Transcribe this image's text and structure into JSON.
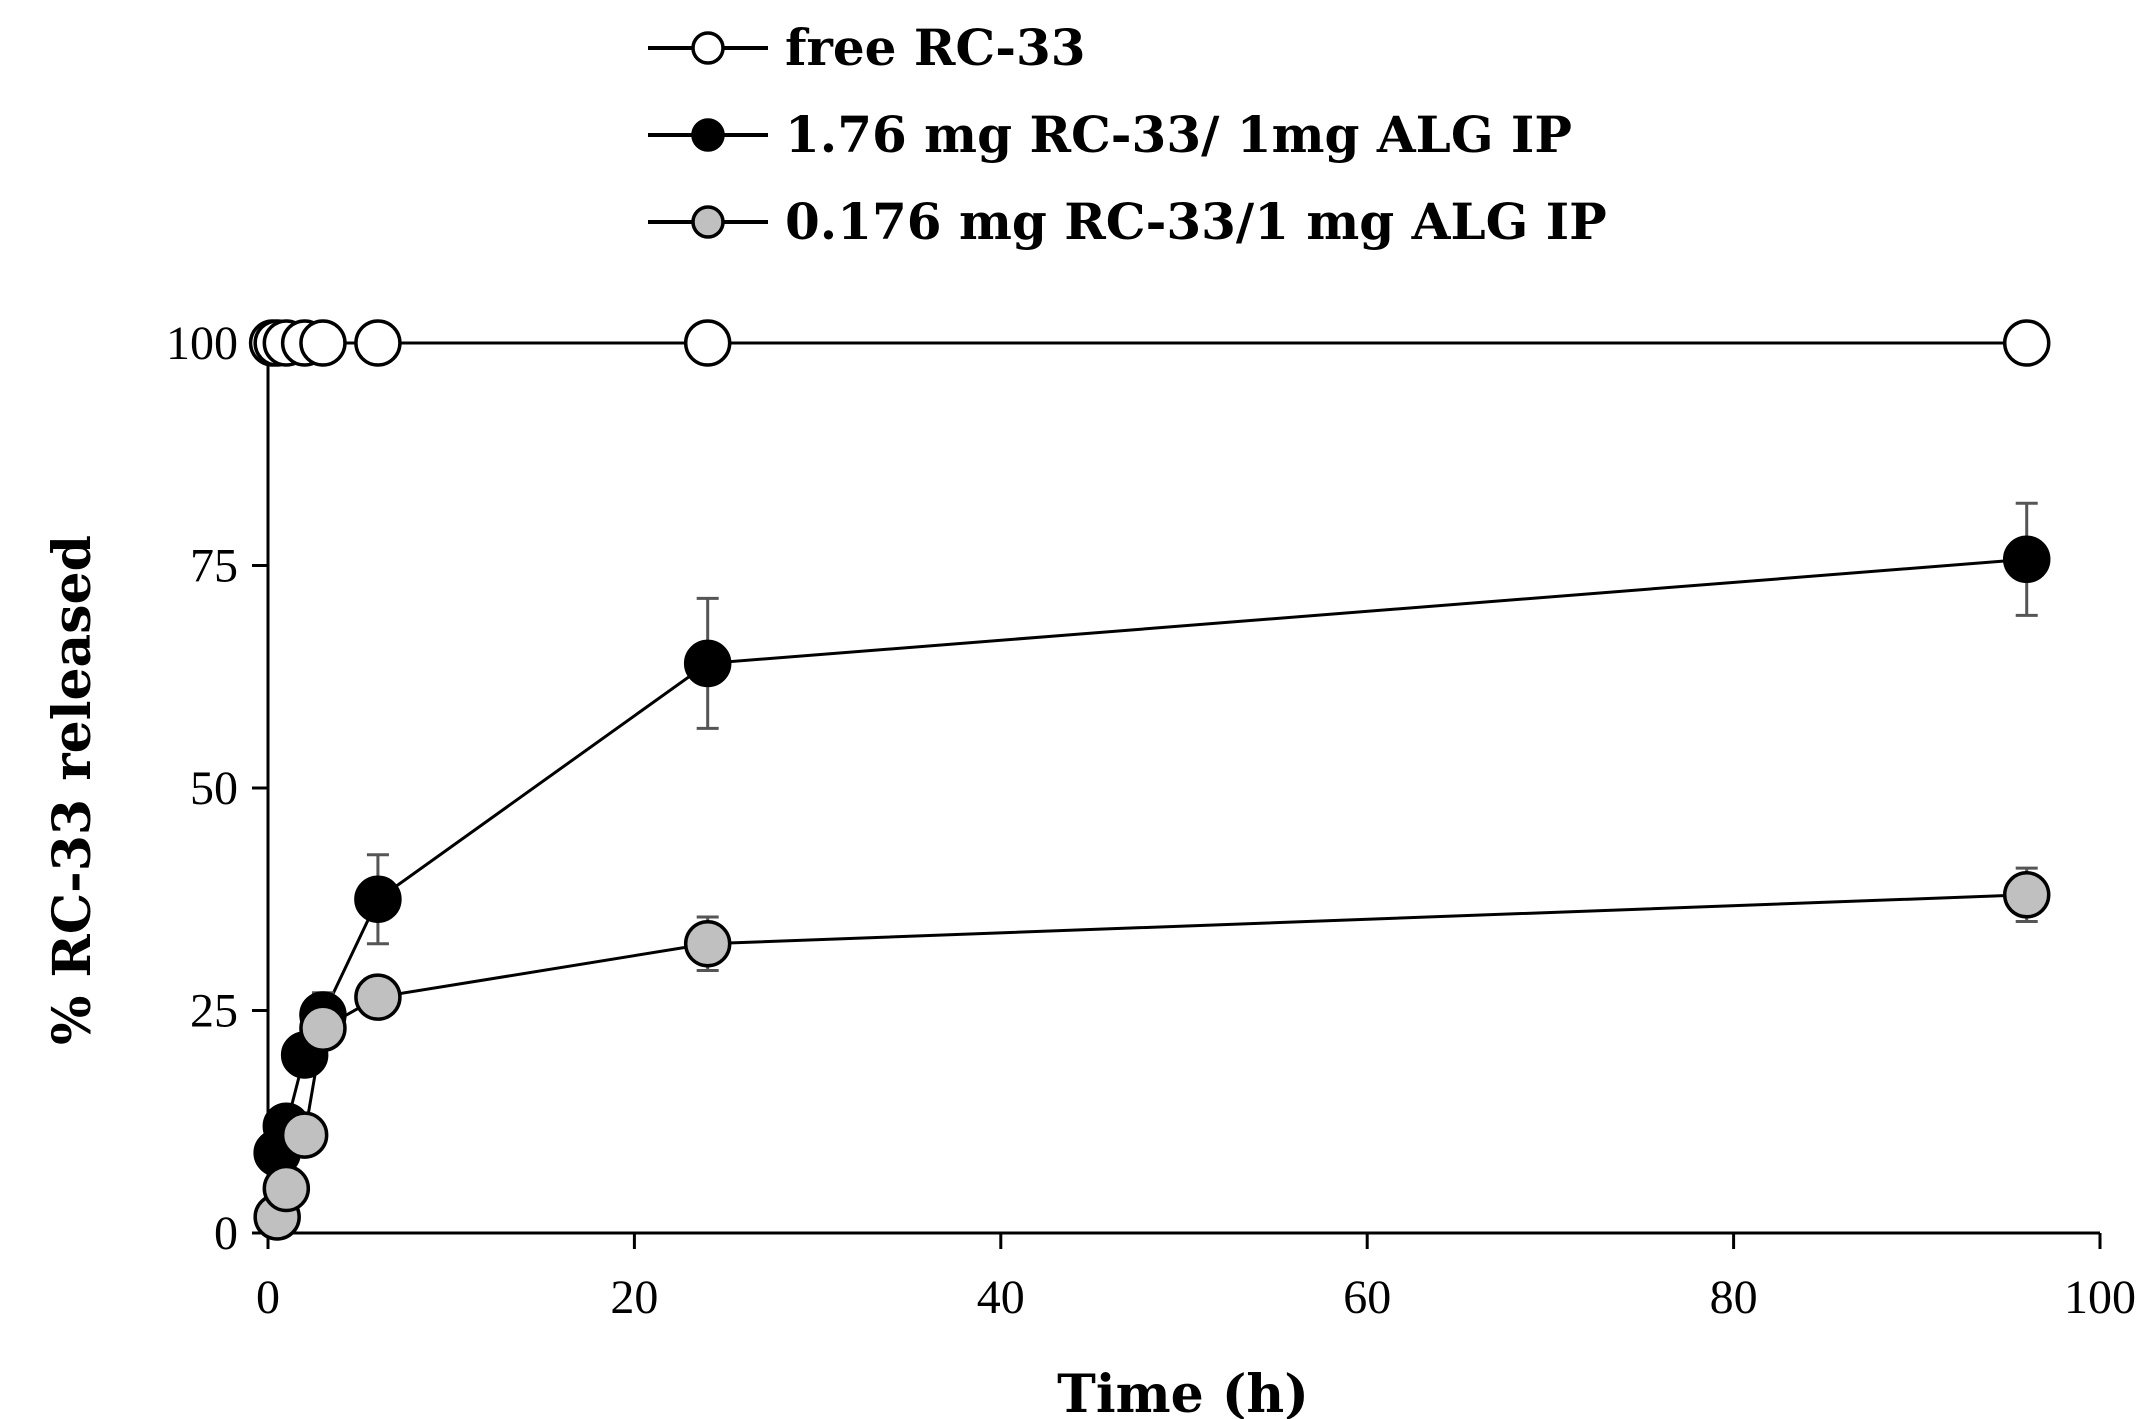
{
  "chart_data": {
    "type": "line",
    "title": "",
    "xlabel": "Time (h)",
    "ylabel": "% RC-33 released",
    "xlim": [
      0,
      100
    ],
    "ylim": [
      0,
      100
    ],
    "xticks": [
      0,
      20,
      40,
      60,
      80,
      100
    ],
    "yticks": [
      0,
      25,
      50,
      75,
      100
    ],
    "grid": false,
    "legend_position": "top",
    "series": [
      {
        "name": "free RC-33",
        "marker_fill": "#ffffff",
        "points": [
          {
            "x": 0.25,
            "y": 100
          },
          {
            "x": 0.5,
            "y": 100
          },
          {
            "x": 1,
            "y": 100
          },
          {
            "x": 2,
            "y": 100
          },
          {
            "x": 3,
            "y": 100
          },
          {
            "x": 6,
            "y": 100
          },
          {
            "x": 24,
            "y": 100
          },
          {
            "x": 96,
            "y": 100
          }
        ]
      },
      {
        "name": "1.76 mg RC-33/ 1mg ALG IP",
        "marker_fill": "#000000",
        "points": [
          {
            "x": 0.5,
            "y": 9,
            "err": 0
          },
          {
            "x": 1,
            "y": 12,
            "err": 0
          },
          {
            "x": 2,
            "y": 20,
            "err": 0
          },
          {
            "x": 3,
            "y": 24.5,
            "err": 2.5
          },
          {
            "x": 6,
            "y": 37.5,
            "err": 5
          },
          {
            "x": 24,
            "y": 64,
            "err": 7.3
          },
          {
            "x": 96,
            "y": 75.7,
            "err": 6.3
          }
        ]
      },
      {
        "name": "0.176 mg RC-33/1 mg ALG IP",
        "marker_fill": "#c0c0c0",
        "points": [
          {
            "x": 0.5,
            "y": 1.8,
            "err": 0
          },
          {
            "x": 1,
            "y": 5,
            "err": 0
          },
          {
            "x": 2,
            "y": 11,
            "err": 0
          },
          {
            "x": 3,
            "y": 23,
            "err": 0
          },
          {
            "x": 6,
            "y": 26.5,
            "err": 0
          },
          {
            "x": 24,
            "y": 32.5,
            "err": 3
          },
          {
            "x": 96,
            "y": 38,
            "err": 3
          }
        ]
      }
    ]
  }
}
